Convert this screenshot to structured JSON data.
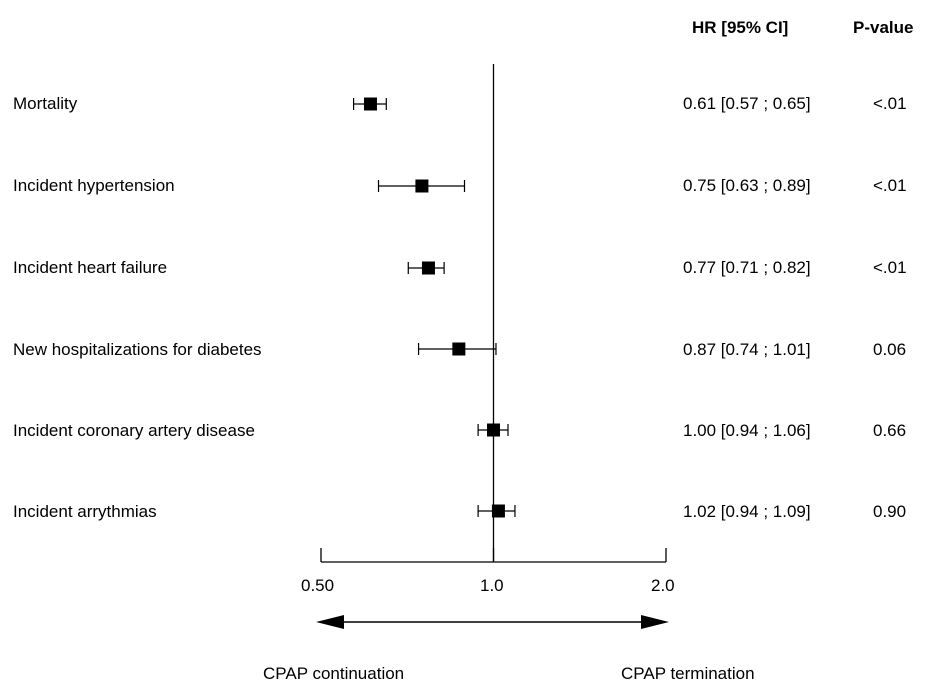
{
  "chart_data": {
    "type": "forest",
    "header": {
      "hr": "HR [95% CI]",
      "pvalue": "P-value"
    },
    "rows": [
      {
        "label": "Mortality",
        "hr": 0.61,
        "lo": 0.57,
        "hi": 0.65,
        "ci_text": "0.61 [0.57 ; 0.65]",
        "p": "<.01"
      },
      {
        "label": "Incident hypertension",
        "hr": 0.75,
        "lo": 0.63,
        "hi": 0.89,
        "ci_text": "0.75 [0.63 ; 0.89]",
        "p": "<.01"
      },
      {
        "label": "Incident heart failure",
        "hr": 0.77,
        "lo": 0.71,
        "hi": 0.82,
        "ci_text": "0.77 [0.71 ; 0.82]",
        "p": "<.01"
      },
      {
        "label": "New hospitalizations for diabetes",
        "hr": 0.87,
        "lo": 0.74,
        "hi": 1.01,
        "ci_text": "0.87 [0.74 ; 1.01]",
        "p": "0.06"
      },
      {
        "label": "Incident coronary artery disease",
        "hr": 1.0,
        "lo": 0.94,
        "hi": 1.06,
        "ci_text": "1.00 [0.94 ; 1.06]",
        "p": "0.66"
      },
      {
        "label": "Incident arrythmias",
        "hr": 1.02,
        "lo": 0.94,
        "hi": 1.09,
        "ci_text": "1.02 [0.94 ; 1.09]",
        "p": "0.90"
      }
    ],
    "x_scale": "log",
    "xlim": [
      0.5,
      2.0
    ],
    "reference_line": 1.0,
    "ticks": [
      {
        "value": 0.5,
        "label": "0.50"
      },
      {
        "value": 1.0,
        "label": "1.0"
      },
      {
        "value": 2.0,
        "label": "2.0"
      }
    ],
    "direction_labels": {
      "left": "CPAP continuation",
      "right": "CPAP termination"
    }
  }
}
